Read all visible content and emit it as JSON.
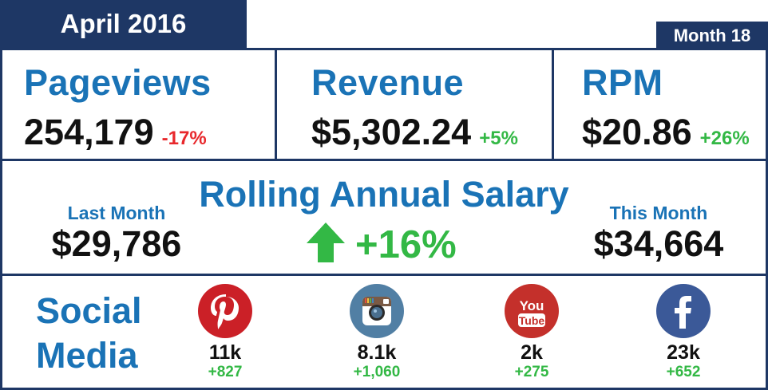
{
  "header": {
    "title": "April 2016",
    "month_badge": "Month 18"
  },
  "metrics": {
    "pageviews": {
      "label": "Pageviews",
      "value": "254,179",
      "change": "-17%"
    },
    "revenue": {
      "label": "Revenue",
      "value": "$5,302.24",
      "change": "+5%"
    },
    "rpm": {
      "label": "RPM",
      "value": "$20.86",
      "change": "+26%"
    }
  },
  "salary": {
    "title": "Rolling Annual Salary",
    "last_month_label": "Last Month",
    "last_month_value": "$29,786",
    "this_month_label": "This Month",
    "this_month_value": "$34,664",
    "change": "+16%"
  },
  "social": {
    "title_line1": "Social",
    "title_line2": "Media",
    "items": [
      {
        "icon": "pinterest-icon",
        "count": "11k",
        "change": "+827",
        "color": "#cb2027"
      },
      {
        "icon": "instagram-icon",
        "count": "8.1k",
        "change": "+1,060",
        "color": "#517fa4"
      },
      {
        "icon": "youtube-icon",
        "count": "2k",
        "change": "+275",
        "color": "#c4302b",
        "icon_text_top": "You",
        "icon_text_bottom": "Tube"
      },
      {
        "icon": "facebook-icon",
        "count": "23k",
        "change": "+652",
        "color": "#3b5998"
      }
    ]
  },
  "colors": {
    "navy": "#1e3765",
    "blue": "#1a73b6",
    "green": "#33b845",
    "red": "#e8282c"
  }
}
